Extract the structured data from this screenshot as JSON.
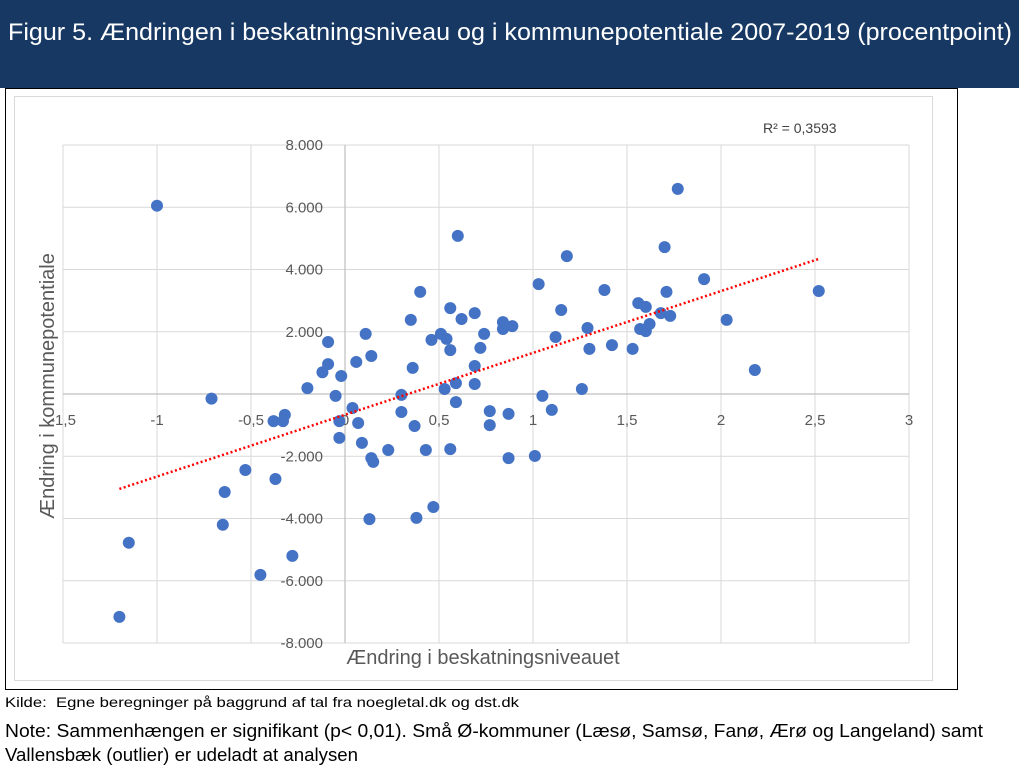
{
  "header": {
    "title": "Figur 5. Ændringen i beskatningsniveau og i kommunepotentiale 2007-2019 (procentpoint)"
  },
  "chart_data": {
    "type": "scatter",
    "xlabel": "Ændring i beskatningsniveauet",
    "ylabel": "Ændring i kommunepotentiale",
    "xlim": [
      -1.5,
      3
    ],
    "ylim": [
      -8000,
      8000
    ],
    "x_major_unit": 0.5,
    "y_major_unit": 2000,
    "grid": true,
    "x_ticks": [
      {
        "value": -1.5,
        "label": "-1,5"
      },
      {
        "value": -1,
        "label": "-1"
      },
      {
        "value": -0.5,
        "label": "-0,5"
      },
      {
        "value": 0,
        "label": "0"
      },
      {
        "value": 0.5,
        "label": "0,5"
      },
      {
        "value": 1,
        "label": "1"
      },
      {
        "value": 1.5,
        "label": "1,5"
      },
      {
        "value": 2,
        "label": "2"
      },
      {
        "value": 2.5,
        "label": "2,5"
      },
      {
        "value": 3,
        "label": "3"
      }
    ],
    "y_ticks": [
      {
        "value": 8000,
        "label": "8.000"
      },
      {
        "value": 6000,
        "label": "6.000"
      },
      {
        "value": 4000,
        "label": "4.000"
      },
      {
        "value": 2000,
        "label": "2.000"
      },
      {
        "value": -2000,
        "label": "-2.000"
      },
      {
        "value": -4000,
        "label": "-4.000"
      },
      {
        "value": -6000,
        "label": "-6.000"
      },
      {
        "value": -8000,
        "label": "-8.000"
      }
    ],
    "x": [
      -1.0,
      -0.71,
      -1.15,
      -1.2,
      -0.64,
      -0.65,
      -0.53,
      -0.37,
      -0.45,
      -0.28,
      -0.38,
      -0.33,
      -0.32,
      -0.2,
      -0.12,
      -0.09,
      -0.09,
      -0.02,
      -0.05,
      -0.03,
      -0.03,
      0.04,
      0.07,
      0.06,
      0.09,
      0.11,
      0.14,
      0.14,
      0.15,
      0.13,
      0.23,
      0.3,
      0.3,
      0.36,
      0.35,
      0.38,
      0.37,
      0.4,
      0.43,
      0.46,
      0.47,
      0.51,
      0.53,
      0.54,
      0.56,
      0.56,
      0.56,
      0.59,
      0.59,
      0.6,
      0.62,
      0.69,
      0.69,
      0.69,
      0.72,
      0.74,
      0.77,
      0.77,
      0.84,
      0.84,
      0.87,
      0.87,
      0.89,
      1.01,
      1.03,
      1.05,
      1.1,
      1.12,
      1.15,
      1.18,
      1.26,
      1.29,
      1.3,
      1.38,
      1.42,
      1.53,
      1.56,
      1.57,
      1.6,
      1.6,
      1.62,
      1.68,
      1.7,
      1.71,
      1.73,
      1.77,
      1.91,
      2.03,
      2.18,
      2.52
    ],
    "y": [
      6050,
      -150,
      -4780,
      -7160,
      -3150,
      -4200,
      -2440,
      -2730,
      -5810,
      -5200,
      -870,
      -870,
      -670,
      190,
      700,
      1670,
      960,
      580,
      -60,
      -870,
      -1410,
      -450,
      -930,
      1030,
      -1570,
      1930,
      1220,
      -2060,
      -2180,
      -4020,
      -1800,
      -30,
      -580,
      840,
      2380,
      -3980,
      -1030,
      3280,
      -1800,
      1740,
      -3630,
      1930,
      160,
      1770,
      1410,
      2760,
      -1770,
      350,
      -260,
      5080,
      2410,
      2600,
      320,
      900,
      1480,
      1930,
      -550,
      -1000,
      2310,
      2090,
      -2060,
      -640,
      2180,
      -1990,
      3530,
      -60,
      -510,
      1830,
      2700,
      4430,
      160,
      2120,
      1450,
      3340,
      1570,
      1450,
      2920,
      2090,
      2800,
      2020,
      2250,
      2600,
      4720,
      3280,
      2510,
      6590,
      3690,
      2380,
      770,
      3310
    ],
    "trendline": {
      "type": "linear",
      "style": "dotted",
      "x": [
        -1.2,
        2.52
      ],
      "y": [
        -3050,
        4340
      ],
      "r_squared_label": "R² = 0,3593"
    }
  },
  "footer": {
    "source": "Kilde:  Egne beregninger på baggrund af tal fra noegletal.dk og dst.dk",
    "note_lines": [
      "Note: Sammenhængen er signifikant (p< 0,01). Små Ø-kommuner (Læsø, Samsø, Fanø, Ærø og Langeland) samt",
      "Vallensbæk (outlier) er udeladt at analysen"
    ]
  },
  "colors": {
    "header_bg": "#163863",
    "header_text": "#ffffff",
    "point": "#4472c4",
    "trendline": "#ff0000",
    "grid": "#d9d9d9",
    "axis_text": "#595959"
  }
}
